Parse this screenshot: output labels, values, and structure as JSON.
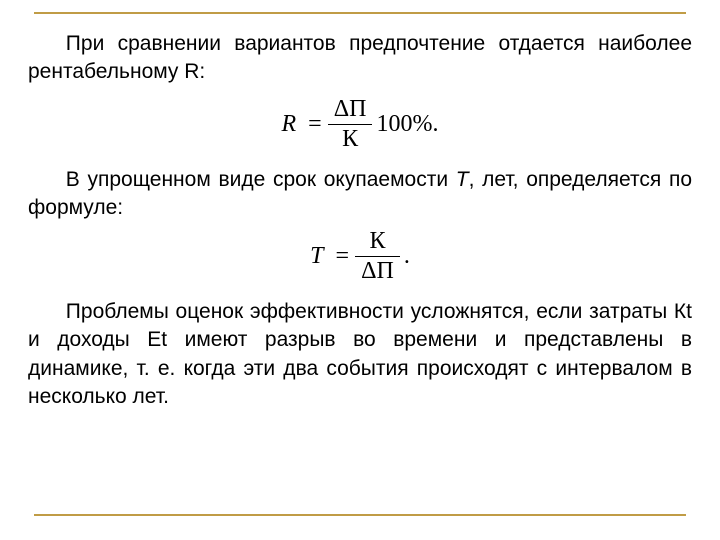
{
  "colors": {
    "rule": "#c09c46",
    "text": "#000000",
    "background": "#ffffff"
  },
  "typography": {
    "body_family": "Arial",
    "body_size_pt": 16,
    "formula_family": "Times New Roman",
    "formula_size_pt": 18
  },
  "para1": "При сравнении вариантов предпочтение отдается наиболее рентабельному R:",
  "formula_R": {
    "lhs": "R",
    "eq": "=",
    "num": "ΔП",
    "den": "К",
    "tail": "100%."
  },
  "para2_prefix": "В упрощенном виде срок окупаемости ",
  "para2_T": "Т",
  "para2_mid": ", лет, определяется по формуле:",
  "formula_T": {
    "lhs": "T",
    "eq": "=",
    "num": "К",
    "den": "ΔП",
    "tail": "."
  },
  "para3": "Проблемы оценок эффективности усложнятся, если затраты Кt и доходы Et имеют разрыв во времени и представлены в динамике, т. е. когда эти два события происходят с интервалом в несколько лет."
}
